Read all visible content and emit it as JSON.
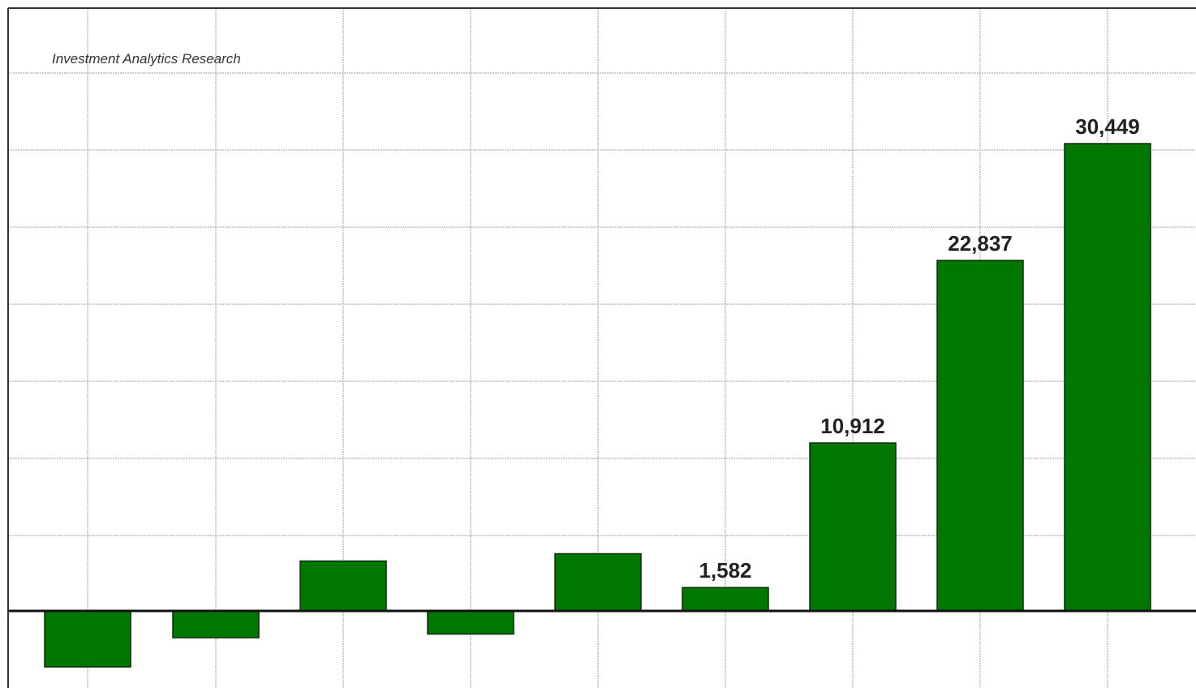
{
  "chart_data": {
    "type": "bar",
    "annotation": "Investment Analytics Research",
    "values": [
      -2300,
      -1100,
      2050,
      -950,
      2350,
      960,
      6900,
      14400,
      19200
    ],
    "data_labels": [
      "",
      "",
      "",
      "",
      "",
      "1,582",
      "10,912",
      "22,837",
      "30,449"
    ],
    "grid": true,
    "axis_labels_visible": false,
    "colors": {
      "bar_fill": "#007700",
      "bar_stroke": "#0a2a0a",
      "grid": "#bdbdbd",
      "zero_line": "#111111",
      "frame": "#333333"
    }
  }
}
